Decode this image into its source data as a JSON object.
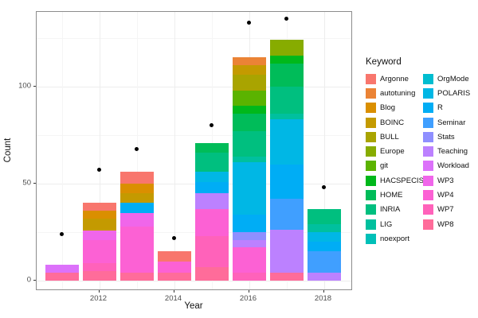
{
  "figure": {
    "x_axis_title": "Year",
    "y_axis_title": "Count"
  },
  "chart_data": {
    "type": "bar",
    "subtype": "stacked-bars-with-points",
    "title": "",
    "xlabel": "Year",
    "ylabel": "Count",
    "grid": true,
    "legend_position": "right",
    "legend_title": "Keyword",
    "x_major_ticks": [
      2012,
      2014,
      2016,
      2018
    ],
    "x_minor_gridlines": [
      2011,
      2013,
      2015,
      2017
    ],
    "y_major_ticks": [
      0,
      50,
      100
    ],
    "y_minor_gridlines": [
      25,
      75,
      125
    ],
    "ylim": [
      -5,
      139
    ],
    "xlim": [
      2010.3,
      2018.8
    ],
    "keywords": [
      {
        "name": "Argonne",
        "color": "#F8766D"
      },
      {
        "name": "autotuning",
        "color": "#EB8335"
      },
      {
        "name": "Blog",
        "color": "#DA8F00"
      },
      {
        "name": "BOINC",
        "color": "#C49A00"
      },
      {
        "name": "BULL",
        "color": "#A9A400"
      },
      {
        "name": "Europe",
        "color": "#87AC00"
      },
      {
        "name": "git",
        "color": "#5BB300"
      },
      {
        "name": "HACSPECIS",
        "color": "#00B81B"
      },
      {
        "name": "HOME",
        "color": "#00BC59"
      },
      {
        "name": "INRIA",
        "color": "#00BF7F"
      },
      {
        "name": "LIG",
        "color": "#00C09E"
      },
      {
        "name": "noexport",
        "color": "#00C0B8"
      },
      {
        "name": "OrgMode",
        "color": "#00BDD0"
      },
      {
        "name": "POLARIS",
        "color": "#00B7E5"
      },
      {
        "name": "R",
        "color": "#00ADF5"
      },
      {
        "name": "Seminar",
        "color": "#409FFF"
      },
      {
        "name": "Stats",
        "color": "#8F8FFF"
      },
      {
        "name": "Teaching",
        "color": "#BC81FF"
      },
      {
        "name": "Workload",
        "color": "#DC71FA"
      },
      {
        "name": "WP3",
        "color": "#F066EA"
      },
      {
        "name": "WP4",
        "color": "#FC61D4"
      },
      {
        "name": "WP7",
        "color": "#FF62BA"
      },
      {
        "name": "WP8",
        "color": "#FF6C9A"
      }
    ],
    "bars": [
      {
        "year": 2011,
        "total": 8,
        "segments": [
          [
            "Workload",
            4
          ],
          [
            "WP8",
            4
          ]
        ]
      },
      {
        "year": 2012,
        "total": 40,
        "segments": [
          [
            "Argonne",
            4
          ],
          [
            "Blog",
            4
          ],
          [
            "BOINC",
            6
          ],
          [
            "WP3",
            5
          ],
          [
            "WP4",
            12
          ],
          [
            "WP7",
            4
          ],
          [
            "WP8",
            5
          ]
        ]
      },
      {
        "year": 2013,
        "total": 56,
        "segments": [
          [
            "Argonne",
            6
          ],
          [
            "Blog",
            5
          ],
          [
            "BOINC",
            5
          ],
          [
            "R",
            5
          ],
          [
            "WP3",
            7
          ],
          [
            "WP4",
            24
          ],
          [
            "WP8",
            4
          ]
        ]
      },
      {
        "year": 2014,
        "total": 15,
        "segments": [
          [
            "Argonne",
            5
          ],
          [
            "WP4",
            6
          ],
          [
            "WP8",
            4
          ]
        ]
      },
      {
        "year": 2015,
        "total": 71,
        "segments": [
          [
            "HOME",
            5
          ],
          [
            "INRIA",
            10
          ],
          [
            "POLARIS",
            5
          ],
          [
            "R",
            6
          ],
          [
            "Teaching",
            8
          ],
          [
            "WP4",
            14
          ],
          [
            "WP7",
            16
          ],
          [
            "WP8",
            7
          ]
        ]
      },
      {
        "year": 2016,
        "total": 115,
        "segments": [
          [
            "autotuning",
            4
          ],
          [
            "BOINC",
            5
          ],
          [
            "BULL",
            8
          ],
          [
            "git",
            8
          ],
          [
            "HACSPECIS",
            4
          ],
          [
            "HOME",
            9
          ],
          [
            "INRIA",
            13
          ],
          [
            "LIG",
            3
          ],
          [
            "POLARIS",
            27
          ],
          [
            "R",
            9
          ],
          [
            "Stats",
            4
          ],
          [
            "Teaching",
            4
          ],
          [
            "WP4",
            13
          ],
          [
            "WP7",
            4
          ]
        ]
      },
      {
        "year": 2017,
        "total": 124,
        "segments": [
          [
            "Europe",
            8
          ],
          [
            "HACSPECIS",
            4
          ],
          [
            "HOME",
            12
          ],
          [
            "INRIA",
            14
          ],
          [
            "LIG",
            3
          ],
          [
            "POLARIS",
            23
          ],
          [
            "R",
            18
          ],
          [
            "Seminar",
            16
          ],
          [
            "Teaching",
            22
          ],
          [
            "WP8",
            4
          ]
        ]
      },
      {
        "year": 2018,
        "total": 37,
        "segments": [
          [
            "INRIA",
            8
          ],
          [
            "LIG",
            4
          ],
          [
            "POLARIS",
            5
          ],
          [
            "R",
            5
          ],
          [
            "Seminar",
            11
          ],
          [
            "Teaching",
            4
          ]
        ]
      }
    ],
    "points": [
      {
        "year": 2011,
        "value": 24
      },
      {
        "year": 2012,
        "value": 57
      },
      {
        "year": 2013,
        "value": 68
      },
      {
        "year": 2014,
        "value": 22
      },
      {
        "year": 2015,
        "value": 80
      },
      {
        "year": 2016,
        "value": 133
      },
      {
        "year": 2017,
        "value": 135
      },
      {
        "year": 2018,
        "value": 48
      }
    ]
  }
}
